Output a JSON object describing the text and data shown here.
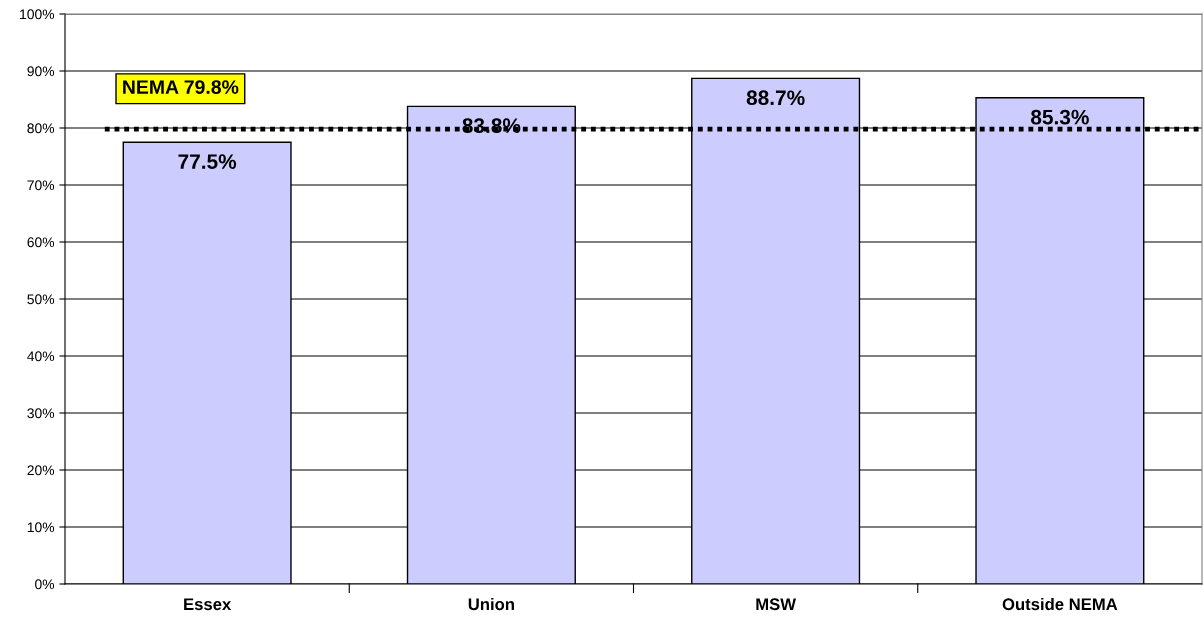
{
  "chart_data": {
    "type": "bar",
    "categories": [
      "Essex",
      "Union",
      "MSW",
      "Outside NEMA"
    ],
    "values": [
      77.5,
      83.8,
      88.7,
      85.3
    ],
    "value_labels": [
      "77.5%",
      "83.8%",
      "88.7%",
      "85.3%"
    ],
    "color": "#ccccff",
    "ylim": [
      0,
      100
    ],
    "yticks": [
      {
        "value": 0,
        "label": "0%"
      },
      {
        "value": 10,
        "label": "10%"
      },
      {
        "value": 20,
        "label": "20%"
      },
      {
        "value": 30,
        "label": "30%"
      },
      {
        "value": 40,
        "label": "40%"
      },
      {
        "value": 50,
        "label": "50%"
      },
      {
        "value": 60,
        "label": "60%"
      },
      {
        "value": 70,
        "label": "70%"
      },
      {
        "value": 80,
        "label": "80%"
      },
      {
        "value": 90,
        "label": "90%"
      },
      {
        "value": 100,
        "label": "100%"
      }
    ],
    "grid": "y",
    "ref_lines": [
      {
        "axis": "y",
        "value": 79.8,
        "label": "NEMA 79.8%",
        "color": "#000000",
        "line_style": "dotted"
      }
    ]
  }
}
